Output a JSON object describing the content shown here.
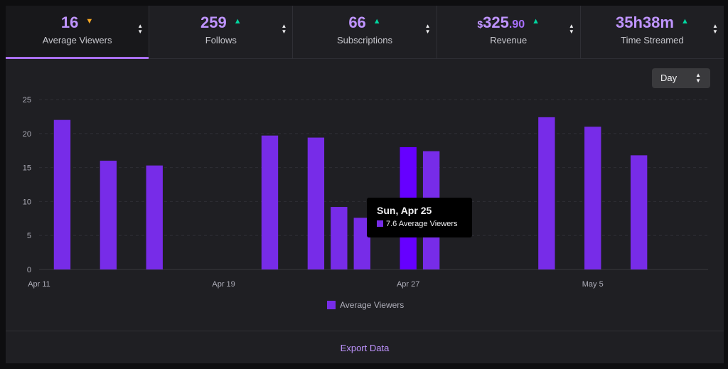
{
  "stats": [
    {
      "value": "16",
      "label": "Average Viewers",
      "trend": "down"
    },
    {
      "value": "259",
      "label": "Follows",
      "trend": "up"
    },
    {
      "value": "66",
      "label": "Subscriptions",
      "trend": "up"
    },
    {
      "currency": "$",
      "value": "325",
      "cents": ".90",
      "label": "Revenue",
      "trend": "up"
    },
    {
      "value": "35h38m",
      "label": "Time Streamed",
      "trend": "up"
    }
  ],
  "dropdown": {
    "value": "Day"
  },
  "tooltip": {
    "title": "Sun, Apr 25",
    "row": "7.6 Average Viewers"
  },
  "export_label": "Export Data",
  "colors": {
    "accent": "#a970ff",
    "bar": "#772ce8",
    "bar_highlight": "#6600ff",
    "trend_up": "#00d6a0",
    "trend_down": "#f5a623"
  },
  "chart_data": {
    "type": "bar",
    "ylim": [
      0,
      25
    ],
    "yticks": [
      0,
      5,
      10,
      15,
      20,
      25
    ],
    "xlim": [
      0,
      29
    ],
    "xticks": [
      {
        "x": 0,
        "label": "Apr 11"
      },
      {
        "x": 8,
        "label": "Apr 19"
      },
      {
        "x": 16,
        "label": "Apr 27"
      },
      {
        "x": 24,
        "label": "May 5"
      }
    ],
    "grid": true,
    "highlight_index": 7,
    "series": [
      {
        "name": "Average Viewers",
        "x": [
          1,
          3,
          5,
          10,
          12,
          13,
          14,
          16,
          17,
          22,
          24,
          26
        ],
        "values": [
          22,
          16,
          15.3,
          19.7,
          19.4,
          9.2,
          7.6,
          18,
          17.4,
          22.4,
          21,
          16.8
        ]
      }
    ]
  }
}
